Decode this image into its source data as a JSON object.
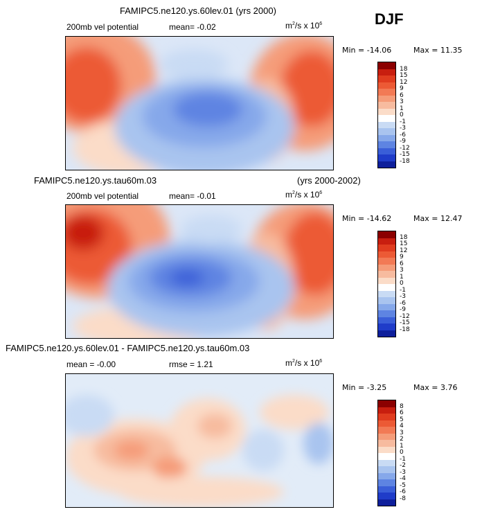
{
  "season": "DJF",
  "panels": [
    {
      "title": "FAMIPC5.ne120.ys.60lev.01 (yrs 2000)",
      "title_right": "",
      "left_label": "200mb vel potential",
      "mean_text": "mean=   -0.02",
      "extra_text": "",
      "units": "m",
      "units_rest": "/s x 10",
      "units_sup1": "2",
      "units_sup2": "6",
      "min_label": "Min = -14.06",
      "max_label": "Max =  11.35",
      "colorbar": {
        "levels": [
          "18",
          "15",
          "12",
          "9",
          "6",
          "3",
          "1",
          "0",
          "-1",
          "-3",
          "-6",
          "-9",
          "-12",
          "-15",
          "-18"
        ],
        "colors": [
          "#8b0000",
          "#c81e0f",
          "#e03c1f",
          "#ec5a35",
          "#f27a55",
          "#f59c79",
          "#f7bb9f",
          "#fbdcc8",
          "#ffffff",
          "#c9dbf4",
          "#a9c4ef",
          "#86a8ea",
          "#5e84e2",
          "#3a5ed8",
          "#1f3cc9",
          "#0e1f9b"
        ]
      }
    },
    {
      "title": "FAMIPC5.ne120.ys.tau60m.03",
      "title_right": "(yrs 2000-2002)",
      "left_label": "200mb vel potential",
      "mean_text": "mean=   -0.01",
      "extra_text": "",
      "units": "m",
      "units_rest": "/s x 10",
      "units_sup1": "2",
      "units_sup2": "6",
      "min_label": "Min = -14.62",
      "max_label": "Max =  12.47",
      "colorbar": {
        "levels": [
          "18",
          "15",
          "12",
          "9",
          "6",
          "3",
          "1",
          "0",
          "-1",
          "-3",
          "-6",
          "-9",
          "-12",
          "-15",
          "-18"
        ],
        "colors": [
          "#8b0000",
          "#c81e0f",
          "#e03c1f",
          "#ec5a35",
          "#f27a55",
          "#f59c79",
          "#f7bb9f",
          "#fbdcc8",
          "#ffffff",
          "#c9dbf4",
          "#a9c4ef",
          "#86a8ea",
          "#5e84e2",
          "#3a5ed8",
          "#1f3cc9",
          "#0e1f9b"
        ]
      }
    },
    {
      "title": "FAMIPC5.ne120.ys.60lev.01 - FAMIPC5.ne120.ys.tau60m.03",
      "title_right": "",
      "left_label": "",
      "mean_text": "mean =   -0.00",
      "extra_text": "rmse =    1.21",
      "units": "m",
      "units_rest": "/s x 10",
      "units_sup1": "2",
      "units_sup2": "6",
      "min_label": "Min =  -3.25",
      "max_label": "Max =   3.76",
      "colorbar": {
        "levels": [
          "8",
          "6",
          "5",
          "4",
          "3",
          "2",
          "1",
          "0",
          "-1",
          "-2",
          "-3",
          "-4",
          "-5",
          "-6",
          "-8"
        ],
        "colors": [
          "#8b0000",
          "#c81e0f",
          "#e03c1f",
          "#ec5a35",
          "#f27a55",
          "#f59c79",
          "#f7bb9f",
          "#fbdcc8",
          "#ffffff",
          "#c9dbf4",
          "#a9c4ef",
          "#86a8ea",
          "#5e84e2",
          "#3a5ed8",
          "#1f3cc9",
          "#0e1f9b"
        ]
      }
    }
  ]
}
